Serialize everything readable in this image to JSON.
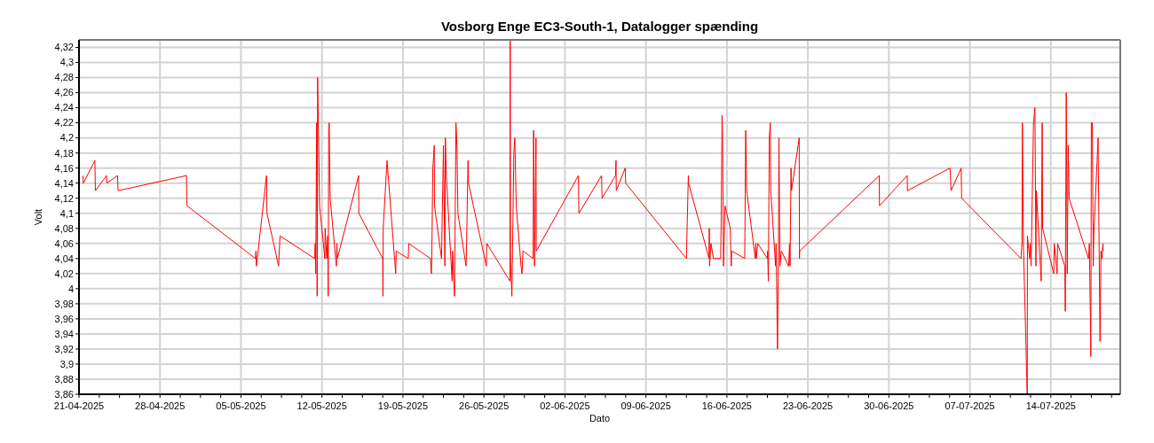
{
  "chart_data": {
    "type": "line",
    "title": "Vosborg Enge EC3-South-1, Datalogger spænding",
    "xlabel": "Dato",
    "ylabel": "Volt",
    "grid": true,
    "marker": "none",
    "line_style": "solid",
    "xlim": [
      "2025-04-21",
      "2025-07-20"
    ],
    "ylim": [
      3.86,
      4.33
    ],
    "yticks": [
      {
        "value": 3.86,
        "label": "3,86"
      },
      {
        "value": 3.88,
        "label": "3,88"
      },
      {
        "value": 3.9,
        "label": "3,9"
      },
      {
        "value": 3.92,
        "label": "3,92"
      },
      {
        "value": 3.94,
        "label": "3,94"
      },
      {
        "value": 3.96,
        "label": "3,96"
      },
      {
        "value": 3.98,
        "label": "3,98"
      },
      4,
      {
        "value": 4.02,
        "label": "4,02"
      },
      {
        "value": 4.04,
        "label": "4,04"
      },
      {
        "value": 4.06,
        "label": "4,06"
      },
      {
        "value": 4.08,
        "label": "4,08"
      },
      {
        "value": 4.1,
        "label": "4,1"
      },
      {
        "value": 4.12,
        "label": "4,12"
      },
      {
        "value": 4.14,
        "label": "4,14"
      },
      {
        "value": 4.16,
        "label": "4,16"
      },
      {
        "value": 4.18,
        "label": "4,18"
      },
      {
        "value": 4.2,
        "label": "4,2"
      },
      {
        "value": 4.22,
        "label": "4,22"
      },
      {
        "value": 4.24,
        "label": "4,24"
      },
      {
        "value": 4.26,
        "label": "4,26"
      },
      {
        "value": 4.28,
        "label": "4,28"
      },
      {
        "value": 4.3,
        "label": "4,3"
      },
      {
        "value": 4.32,
        "label": "4,32"
      }
    ],
    "xticks": [
      {
        "value": "2025-04-21",
        "label": "21-04-2025"
      },
      {
        "value": "2025-04-22T18:00",
        "label": null
      },
      {
        "value": "2025-04-24T12:00",
        "label": null
      },
      {
        "value": "2025-04-26T06:00",
        "label": null
      },
      {
        "value": "2025-04-28",
        "label": "28-04-2025"
      },
      {
        "value": "2025-04-29T18:00",
        "label": null
      },
      {
        "value": "2025-05-01T12:00",
        "label": null
      },
      {
        "value": "2025-05-03T06:00",
        "label": null
      },
      {
        "value": "2025-05-05",
        "label": "05-05-2025"
      },
      {
        "value": "2025-05-06T18:00",
        "label": null
      },
      {
        "value": "2025-05-08T12:00",
        "label": null
      },
      {
        "value": "2025-05-10T06:00",
        "label": null
      },
      {
        "value": "2025-05-12",
        "label": "12-05-2025"
      },
      {
        "value": "2025-05-13T18:00",
        "label": null
      },
      {
        "value": "2025-05-15T12:00",
        "label": null
      },
      {
        "value": "2025-05-17T06:00",
        "label": null
      },
      {
        "value": "2025-05-19",
        "label": "19-05-2025"
      },
      {
        "value": "2025-05-20T18:00",
        "label": null
      },
      {
        "value": "2025-05-22T12:00",
        "label": null
      },
      {
        "value": "2025-05-24T06:00",
        "label": null
      },
      {
        "value": "2025-05-26",
        "label": "26-05-2025"
      },
      {
        "value": "2025-05-27T18:00",
        "label": null
      },
      {
        "value": "2025-05-29T12:00",
        "label": null
      },
      {
        "value": "2025-05-31T06:00",
        "label": null
      },
      {
        "value": "2025-06-02",
        "label": "02-06-2025"
      },
      {
        "value": "2025-06-03T18:00",
        "label": null
      },
      {
        "value": "2025-06-05T12:00",
        "label": null
      },
      {
        "value": "2025-06-07T06:00",
        "label": null
      },
      {
        "value": "2025-06-09",
        "label": "09-06-2025"
      },
      {
        "value": "2025-06-10T18:00",
        "label": null
      },
      {
        "value": "2025-06-12T12:00",
        "label": null
      },
      {
        "value": "2025-06-14T06:00",
        "label": null
      },
      {
        "value": "2025-06-16",
        "label": "16-06-2025"
      },
      {
        "value": "2025-06-17T18:00",
        "label": null
      },
      {
        "value": "2025-06-19T12:00",
        "label": null
      },
      {
        "value": "2025-06-21T06:00",
        "label": null
      },
      {
        "value": "2025-06-23",
        "label": "23-06-2025"
      },
      {
        "value": "2025-06-24T18:00",
        "label": null
      },
      {
        "value": "2025-06-26T12:00",
        "label": null
      },
      {
        "value": "2025-06-28T06:00",
        "label": null
      },
      {
        "value": "2025-06-30",
        "label": "30-06-2025"
      },
      {
        "value": "2025-07-01T18:00",
        "label": null
      },
      {
        "value": "2025-07-03T12:00",
        "label": null
      },
      {
        "value": "2025-07-05T06:00",
        "label": null
      },
      {
        "value": "2025-07-07",
        "label": "07-07-2025"
      },
      {
        "value": "2025-07-08T18:00",
        "label": null
      },
      {
        "value": "2025-07-10T12:00",
        "label": null
      },
      {
        "value": "2025-07-12T06:00",
        "label": null
      },
      {
        "value": "2025-07-14",
        "label": "14-07-2025"
      },
      {
        "value": "2025-07-15T18:00",
        "label": null
      },
      {
        "value": "2025-07-17T12:00",
        "label": null
      },
      {
        "value": "2025-07-19T06:00",
        "label": null
      }
    ],
    "series": [
      {
        "color": "#ff0000",
        "x": [
          "2025-04-21T08:00",
          "2025-04-21T09:00",
          "2025-04-22T09:00",
          "2025-04-22T10:00",
          "2025-04-23T09:00",
          "2025-04-23T10:00",
          "2025-04-24T08:00",
          "2025-04-24T09:00",
          "2025-04-30T07:00",
          "2025-04-30T08:00",
          "2025-05-06T06:00",
          "2025-05-06T07:00",
          "2025-05-06T08:00",
          "2025-05-07T05:00",
          "2025-05-07T06:00",
          "2025-05-08T06:00",
          "2025-05-08T09:00",
          "2025-05-11T09:00",
          "2025-05-11T10:00",
          "2025-05-11T11:00",
          "2025-05-11T13:00",
          "2025-05-11T14:00",
          "2025-05-11T15:00",
          "2025-05-11T16:00",
          "2025-05-11T19:00",
          "2025-05-12T06:00",
          "2025-05-12T06:30",
          "2025-05-12T10:00",
          "2025-05-12T12:00",
          "2025-05-12T13:00",
          "2025-05-12T14:00",
          "2025-05-12T15:00",
          "2025-05-12T17:00",
          "2025-05-13T06:00",
          "2025-05-13T07:00",
          "2025-05-13T08:00",
          "2025-05-15T04:00",
          "2025-05-15T04:30",
          "2025-05-17T06:00",
          "2025-05-17T06:30",
          "2025-05-17T07:00",
          "2025-05-17T15:00",
          "2025-05-18T09:00",
          "2025-05-18T10:00",
          "2025-05-19T11:00",
          "2025-05-19T12:00",
          "2025-05-21T09:00",
          "2025-05-21T11:00",
          "2025-05-21T12:00",
          "2025-05-21T14:00",
          "2025-05-21T17:00",
          "2025-05-21T17:30",
          "2025-05-22T08:00",
          "2025-05-22T12:00",
          "2025-05-22T15:00",
          "2025-05-22T16:00",
          "2025-05-22T18:00",
          "2025-05-23T06:00",
          "2025-05-23T07:00",
          "2025-05-23T11:00",
          "2025-05-23T14:00",
          "2025-05-23T16:00",
          "2025-05-23T18:00",
          "2025-05-24T11:00",
          "2025-05-24T12:00",
          "2025-05-24T15:00",
          "2025-05-24T16:00",
          "2025-05-26T05:00",
          "2025-05-26T06:00",
          "2025-05-28T06:00",
          "2025-05-28T06:30",
          "2025-05-28T07:00",
          "2025-05-28T10:00",
          "2025-05-28T14:00",
          "2025-05-28T16:00",
          "2025-05-28T19:00",
          "2025-05-29T05:00",
          "2025-05-29T07:00",
          "2025-05-29T09:00",
          "2025-05-30T06:00",
          "2025-05-30T07:00",
          "2025-05-30T09:00",
          "2025-05-30T12:00",
          "2025-05-30T12:30",
          "2025-06-03T04:00",
          "2025-06-03T05:00",
          "2025-06-05T04:00",
          "2025-06-05T05:00",
          "2025-06-06T09:00",
          "2025-06-06T10:00",
          "2025-06-06T10:30",
          "2025-06-07T05:00",
          "2025-06-07T06:00",
          "2025-06-12T12:00",
          "2025-06-12T16:00",
          "2025-06-12T16:30",
          "2025-06-14T11:00",
          "2025-06-14T11:30",
          "2025-06-14T12:00",
          "2025-06-14T15:00",
          "2025-06-14T20:00",
          "2025-06-15T11:00",
          "2025-06-15T12:00",
          "2025-06-15T14:00",
          "2025-06-15T15:00",
          "2025-06-15T17:00",
          "2025-06-15T20:00",
          "2025-06-16T07:00",
          "2025-06-16T09:00",
          "2025-06-16T10:00",
          "2025-06-17T13:00",
          "2025-06-17T15:00",
          "2025-06-17T17:00",
          "2025-06-18T11:00",
          "2025-06-18T12:00",
          "2025-06-18T13:00",
          "2025-06-18T16:00",
          "2025-06-19T12:00",
          "2025-06-19T12:30",
          "2025-06-19T14:00",
          "2025-06-19T16:00",
          "2025-06-19T18:00",
          "2025-06-19T19:00",
          "2025-06-20T05:00",
          "2025-06-20T06:00",
          "2025-06-20T09:00",
          "2025-06-20T11:00",
          "2025-06-20T12:00",
          "2025-06-20T14:00",
          "2025-06-20T17:00",
          "2025-06-21T08:00",
          "2025-06-21T10:00",
          "2025-06-21T11:00",
          "2025-06-21T13:00",
          "2025-06-21T14:00",
          "2025-06-22T06:00",
          "2025-06-22T06:30",
          "2025-06-22T07:00",
          "2025-06-29T04:00",
          "2025-06-29T04:30",
          "2025-07-01T14:00",
          "2025-07-01T14:30",
          "2025-07-05T07:00",
          "2025-07-05T09:00",
          "2025-07-06T06:00",
          "2025-07-06T07:00",
          "2025-07-11T10:00",
          "2025-07-11T12:00",
          "2025-07-11T13:00",
          "2025-07-11T15:00",
          "2025-07-11T23:00",
          "2025-07-11T23:30",
          "2025-07-12T04:00",
          "2025-07-12T05:00",
          "2025-07-12T07:00",
          "2025-07-12T12:00",
          "2025-07-12T15:00",
          "2025-07-12T17:00",
          "2025-07-12T18:00",
          "2025-07-13T04:00",
          "2025-07-13T06:00",
          "2025-07-13T07:00",
          "2025-07-14T06:00",
          "2025-07-14T07:00",
          "2025-07-14T13:00",
          "2025-07-14T14:00",
          "2025-07-15T05:00",
          "2025-07-15T06:00",
          "2025-07-15T06:30",
          "2025-07-15T08:00",
          "2025-07-15T10:00",
          "2025-07-15T12:00",
          "2025-07-15T14:00",
          "2025-07-17T06:00",
          "2025-07-17T08:00",
          "2025-07-17T11:00",
          "2025-07-17T12:00",
          "2025-07-17T14:00",
          "2025-07-17T16:00",
          "2025-07-17T17:00",
          "2025-07-18T02:00",
          "2025-07-18T06:00",
          "2025-07-18T08:00",
          "2025-07-18T10:00",
          "2025-07-18T12:00",
          "2025-07-18T12:30"
        ],
        "values": [
          4.15,
          4.14,
          4.17,
          4.13,
          4.15,
          4.14,
          4.15,
          4.13,
          4.15,
          4.11,
          4.04,
          4.05,
          4.03,
          4.15,
          4.1,
          4.03,
          4.07,
          4.04,
          4.06,
          4.02,
          4.22,
          3.99,
          4.28,
          4.24,
          4.11,
          4.04,
          4.08,
          4.04,
          4.07,
          3.99,
          4.21,
          4.22,
          4.12,
          4.03,
          4.06,
          4.04,
          4.15,
          4.1,
          4.04,
          3.99,
          4.08,
          4.17,
          4.02,
          4.05,
          4.04,
          4.06,
          4.04,
          4.02,
          4.05,
          4.16,
          4.19,
          4.11,
          4.04,
          4.19,
          4.03,
          4.2,
          4.15,
          4.01,
          4.05,
          3.99,
          4.22,
          4.19,
          4.1,
          4.03,
          4.06,
          4.17,
          4.14,
          4.03,
          4.06,
          4.01,
          4.33,
          4.04,
          3.99,
          4.18,
          4.2,
          4.11,
          4.03,
          4.02,
          4.05,
          4.04,
          4.21,
          4.03,
          4.2,
          4.05,
          4.15,
          4.1,
          4.15,
          4.12,
          4.15,
          4.17,
          4.13,
          4.16,
          4.14,
          4.04,
          4.15,
          4.14,
          4.04,
          4.08,
          4.03,
          4.06,
          4.04,
          4.04,
          4.08,
          4.23,
          4.2,
          4.03,
          4.11,
          4.08,
          4.03,
          4.05,
          4.04,
          4.21,
          4.13,
          4.04,
          4.06,
          4.04,
          4.06,
          4.04,
          4.05,
          4.01,
          4.2,
          4.22,
          4.13,
          4.03,
          4.06,
          3.92,
          4.05,
          4.2,
          4.03,
          4.05,
          4.03,
          4.06,
          4.03,
          4.16,
          4.13,
          4.2,
          4.04,
          4.05,
          4.15,
          4.11,
          4.15,
          4.13,
          4.16,
          4.13,
          4.16,
          4.12,
          4.04,
          4.06,
          4.22,
          4.06,
          3.86,
          4.07,
          4.04,
          4.06,
          4.03,
          4.22,
          4.24,
          4.03,
          4.13,
          4.01,
          4.22,
          4.08,
          4.02,
          4.06,
          4.02,
          4.06,
          4.03,
          3.97,
          4.06,
          4.26,
          4.02,
          4.19,
          4.12,
          4.04,
          4.06,
          3.91,
          4.22,
          4.22,
          4.03,
          4.07,
          4.2,
          3.93,
          4.05,
          4.04,
          4.06,
          4.05
        ]
      }
    ]
  }
}
